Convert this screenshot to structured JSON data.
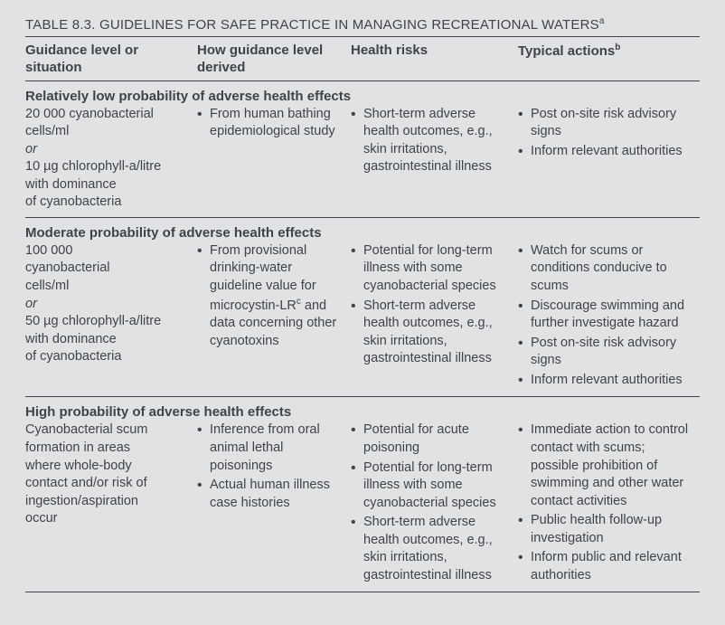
{
  "title": "TABLE 8.3.  GUIDELINES FOR SAFE PRACTICE IN MANAGING RECREATIONAL WATERS",
  "title_sup": "a",
  "headers": {
    "col1": "Guidance level or situation",
    "col2": "How guidance level derived",
    "col3": "Health risks",
    "col4": "Typical actions",
    "col4_sup": "b"
  },
  "sections": [
    {
      "header": "Relatively low probability of adverse health effects",
      "situation": {
        "lines1": [
          "20 000 cyanobacterial",
          "cells/ml"
        ],
        "or": "or",
        "lines2": [
          "10 µg chlorophyll-a/litre",
          "with dominance",
          "of cyanobacteria"
        ]
      },
      "derived": [
        "From human bathing epidemiological study"
      ],
      "risks": [
        "Short-term adverse health outcomes, e.g., skin irritations, gastrointestinal illness"
      ],
      "actions": [
        "Post on-site risk advisory signs",
        "Inform relevant authorities"
      ]
    },
    {
      "header": "Moderate probability of adverse health effects",
      "situation": {
        "lines1": [
          "100 000",
          "cyanobacterial",
          "cells/ml"
        ],
        "or": "or",
        "lines2": [
          "50 µg chlorophyll-a/litre",
          "with dominance",
          "of cyanobacteria"
        ]
      },
      "derived_items": [
        {
          "pre": "From provisional drinking-water guideline value for microcystin-LR",
          "sup": "c",
          "post": " and data concerning other cyanotoxins"
        }
      ],
      "risks": [
        "Potential for long-term illness with some cyanobacterial species",
        "Short-term adverse health outcomes, e.g., skin irritations, gastrointestinal illness"
      ],
      "actions": [
        "Watch for scums or conditions conducive to scums",
        "Discourage swimming and further investigate hazard",
        "Post on-site risk advisory signs",
        "Inform relevant authorities"
      ]
    },
    {
      "header": "High probability of adverse health effects",
      "situation": {
        "lines1": [
          "Cyanobacterial scum",
          "formation in areas",
          "where whole-body",
          "contact and/or risk of",
          "ingestion/aspiration",
          "occur"
        ]
      },
      "derived": [
        "Inference from oral animal lethal poisonings",
        "Actual human illness case histories"
      ],
      "risks": [
        "Potential for acute poisoning",
        "Potential for long-term illness with some cyanobacterial species",
        "Short-term adverse health outcomes, e.g., skin irritations, gastrointestinal illness"
      ],
      "actions": [
        "Immediate action to control contact with scums; possible prohibition of swimming and other water contact activities",
        "Public health follow-up investigation",
        "Inform public and relevant authorities"
      ]
    }
  ]
}
